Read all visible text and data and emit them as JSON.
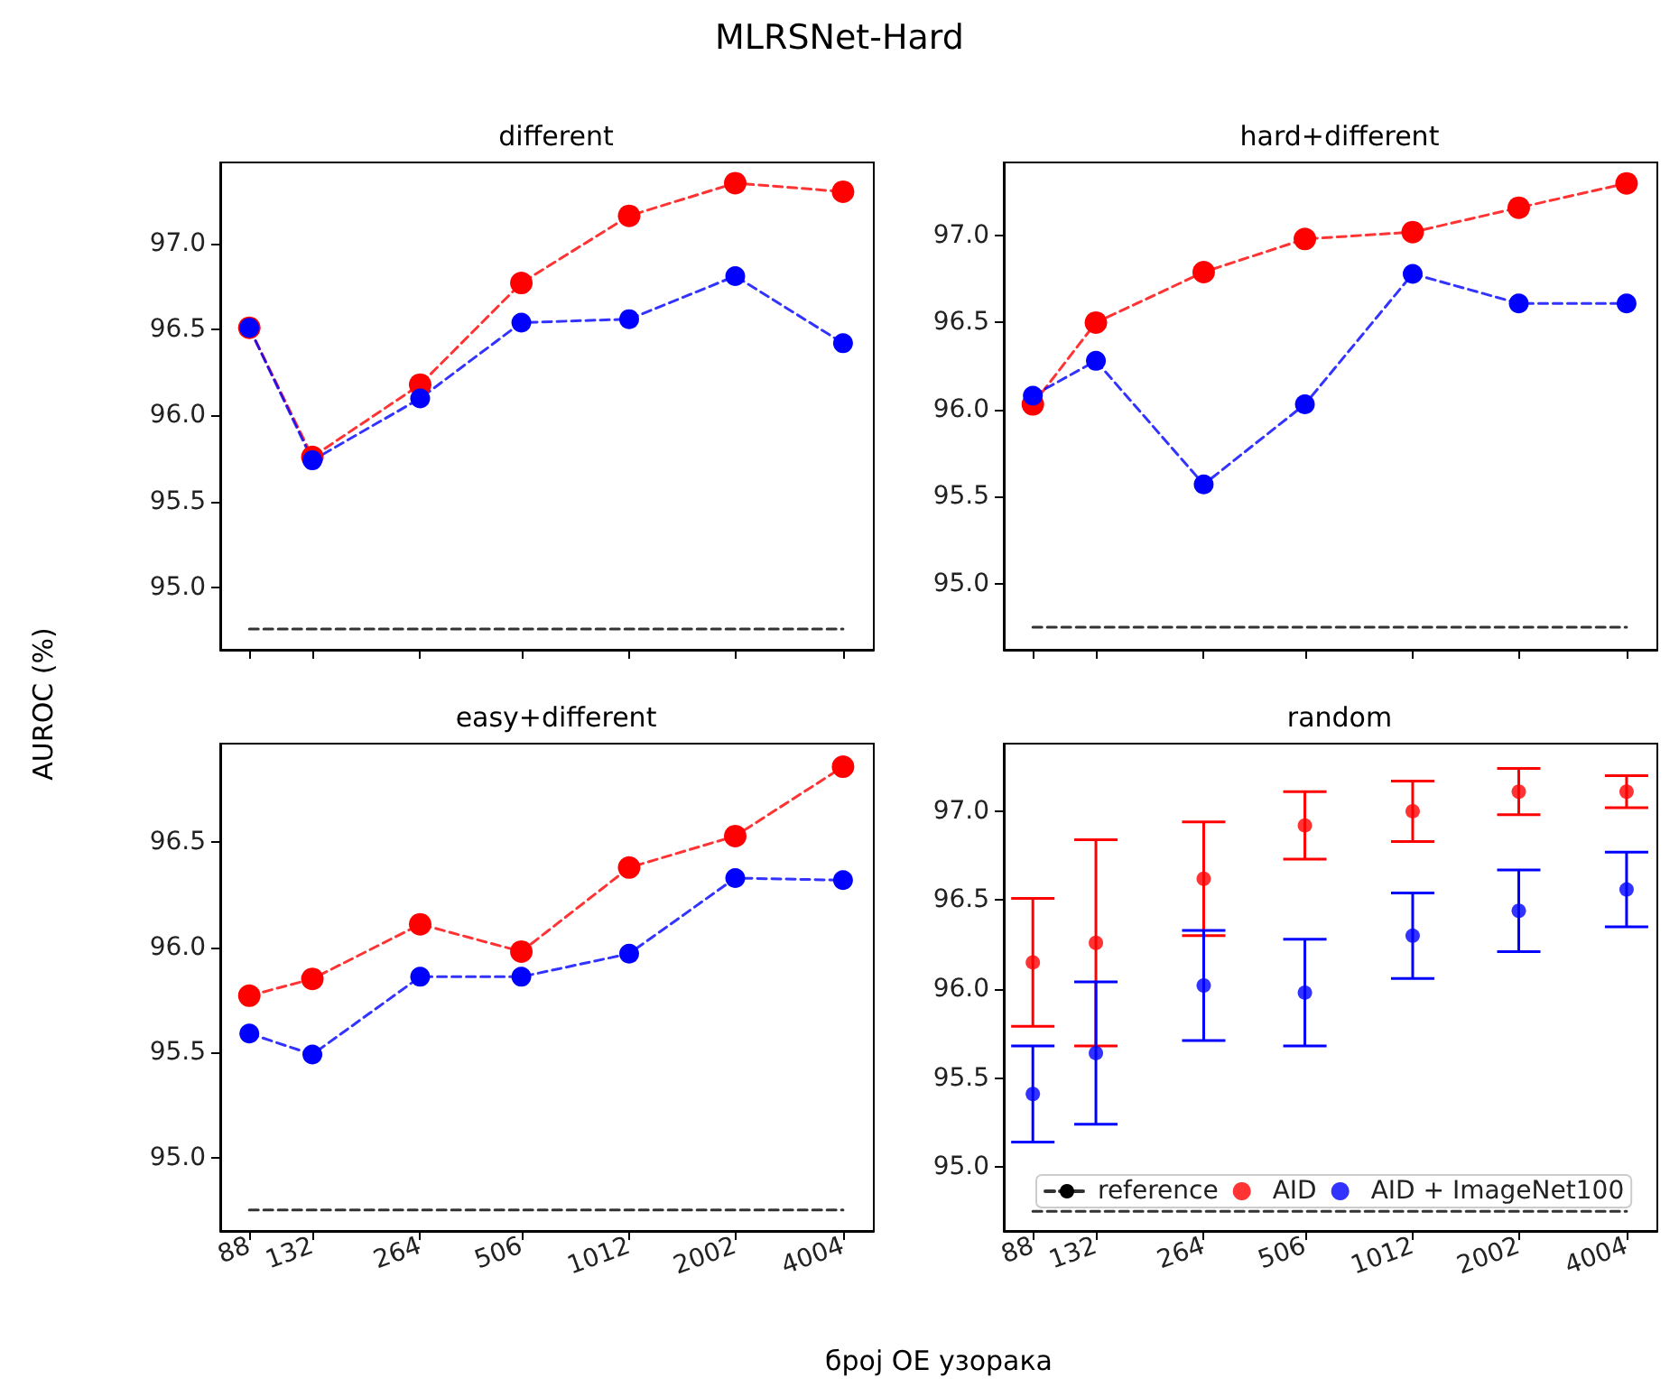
{
  "chart_data": [
    {
      "type": "line",
      "title": "different",
      "annotations": [
        "MLRSNet-Hard"
      ],
      "ylabel": "AUROC (%)",
      "x": [
        88,
        132,
        264,
        506,
        1012,
        2002,
        4004
      ],
      "xlim": [
        73,
        4880
      ],
      "xticks": [
        88,
        132,
        264,
        506,
        1012,
        2002,
        4004
      ],
      "log": "x",
      "ylim": [
        94.64,
        97.47
      ],
      "yticks": [
        {
          "value": 95,
          "label": "95.0"
        },
        {
          "value": 95.5,
          "label": "95.5"
        },
        {
          "value": 96,
          "label": "96.0"
        },
        {
          "value": 96.5,
          "label": "96.5"
        },
        {
          "value": 97,
          "label": "97.0"
        }
      ],
      "tick_labels": "y",
      "grid": false,
      "legend": false,
      "marker": "circle",
      "line_style": "dashed",
      "series": [
        {
          "color": "#000000",
          "marker": "none",
          "values": [
            94.76,
            94.76,
            94.76,
            94.76,
            94.76,
            94.76,
            94.76
          ]
        },
        {
          "color": "#ff0000",
          "values": [
            96.51,
            95.76,
            96.18,
            96.77,
            97.16,
            97.35,
            97.3
          ]
        },
        {
          "color": "#0000ff",
          "values": [
            96.51,
            95.74,
            96.1,
            96.54,
            96.56,
            96.81,
            96.42
          ]
        }
      ]
    },
    {
      "type": "line",
      "title": "hard+different",
      "x": [
        88,
        132,
        264,
        506,
        1012,
        2002,
        4004
      ],
      "xlim": [
        73,
        4880
      ],
      "xticks": [
        88,
        132,
        264,
        506,
        1012,
        2002,
        4004
      ],
      "log": "x",
      "ylim": [
        94.62,
        97.42
      ],
      "yticks": [
        {
          "value": 95,
          "label": "95.0"
        },
        {
          "value": 95.5,
          "label": "95.5"
        },
        {
          "value": 96,
          "label": "96.0"
        },
        {
          "value": 96.5,
          "label": "96.5"
        },
        {
          "value": 97,
          "label": "97.0"
        }
      ],
      "tick_labels": "y",
      "grid": false,
      "legend": false,
      "marker": "circle",
      "line_style": "dashed",
      "series": [
        {
          "color": "#000000",
          "marker": "none",
          "values": [
            94.75,
            94.75,
            94.75,
            94.75,
            94.75,
            94.75,
            94.75
          ]
        },
        {
          "color": "#ff0000",
          "values": [
            96.03,
            96.5,
            96.79,
            96.98,
            97.02,
            97.16,
            97.3
          ]
        },
        {
          "color": "#0000ff",
          "values": [
            96.08,
            96.28,
            95.57,
            96.03,
            96.78,
            96.61,
            96.61
          ]
        }
      ]
    },
    {
      "type": "line",
      "title": "easy+different",
      "xlabel": "број ОЕ узорака",
      "x": [
        88,
        132,
        264,
        506,
        1012,
        2002,
        4004
      ],
      "xlim": [
        73,
        4880
      ],
      "xticks": [
        88,
        132,
        264,
        506,
        1012,
        2002,
        4004
      ],
      "log": "x",
      "ylim": [
        94.65,
        96.97
      ],
      "yticks": [
        {
          "value": 95,
          "label": "95.0"
        },
        {
          "value": 95.5,
          "label": "95.5"
        },
        {
          "value": 96,
          "label": "96.0"
        },
        {
          "value": 96.5,
          "label": "96.5"
        }
      ],
      "grid": false,
      "legend": false,
      "marker": "circle",
      "line_style": "dashed",
      "series": [
        {
          "color": "#000000",
          "marker": "none",
          "values": [
            94.75,
            94.75,
            94.75,
            94.75,
            94.75,
            94.75,
            94.75
          ]
        },
        {
          "color": "#ff0000",
          "values": [
            95.77,
            95.85,
            96.11,
            95.98,
            96.38,
            96.53,
            96.86
          ]
        },
        {
          "color": "#0000ff",
          "values": [
            95.59,
            95.49,
            95.86,
            95.86,
            95.97,
            96.33,
            96.32
          ]
        }
      ]
    },
    {
      "type": "scatter",
      "title": "random",
      "x": [
        88,
        132,
        264,
        506,
        1012,
        2002,
        4004
      ],
      "xlim": [
        73,
        4880
      ],
      "xticks": [
        88,
        132,
        264,
        506,
        1012,
        2002,
        4004
      ],
      "log": "x",
      "ylim": [
        94.64,
        97.38
      ],
      "yticks": [
        {
          "value": 95,
          "label": "95.0"
        },
        {
          "value": 95.5,
          "label": "95.5"
        },
        {
          "value": 96,
          "label": "96.0"
        },
        {
          "value": 96.5,
          "label": "96.5"
        },
        {
          "value": 97,
          "label": "97.0"
        }
      ],
      "grid": false,
      "legend": "bottom",
      "marker": "circle",
      "series": [
        {
          "name": "reference",
          "type": "line",
          "line_style": "dashed",
          "marker": "none",
          "color": "#000000",
          "values": [
            94.75,
            94.75,
            94.75,
            94.75,
            94.75,
            94.75,
            94.75
          ]
        },
        {
          "name": "AID",
          "color": "#ff0000",
          "values": [
            96.15,
            96.26,
            96.62,
            96.92,
            97.0,
            97.11,
            97.11
          ],
          "errors": [
            0.36,
            0.58,
            0.32,
            0.19,
            0.17,
            0.13,
            0.09
          ]
        },
        {
          "name": "AID + ImageNet100",
          "color": "#0000ff",
          "values": [
            95.41,
            95.64,
            96.02,
            95.98,
            96.3,
            96.44,
            96.56
          ],
          "errors": [
            0.27,
            0.4,
            0.31,
            0.3,
            0.24,
            0.23,
            0.21
          ]
        }
      ]
    }
  ]
}
